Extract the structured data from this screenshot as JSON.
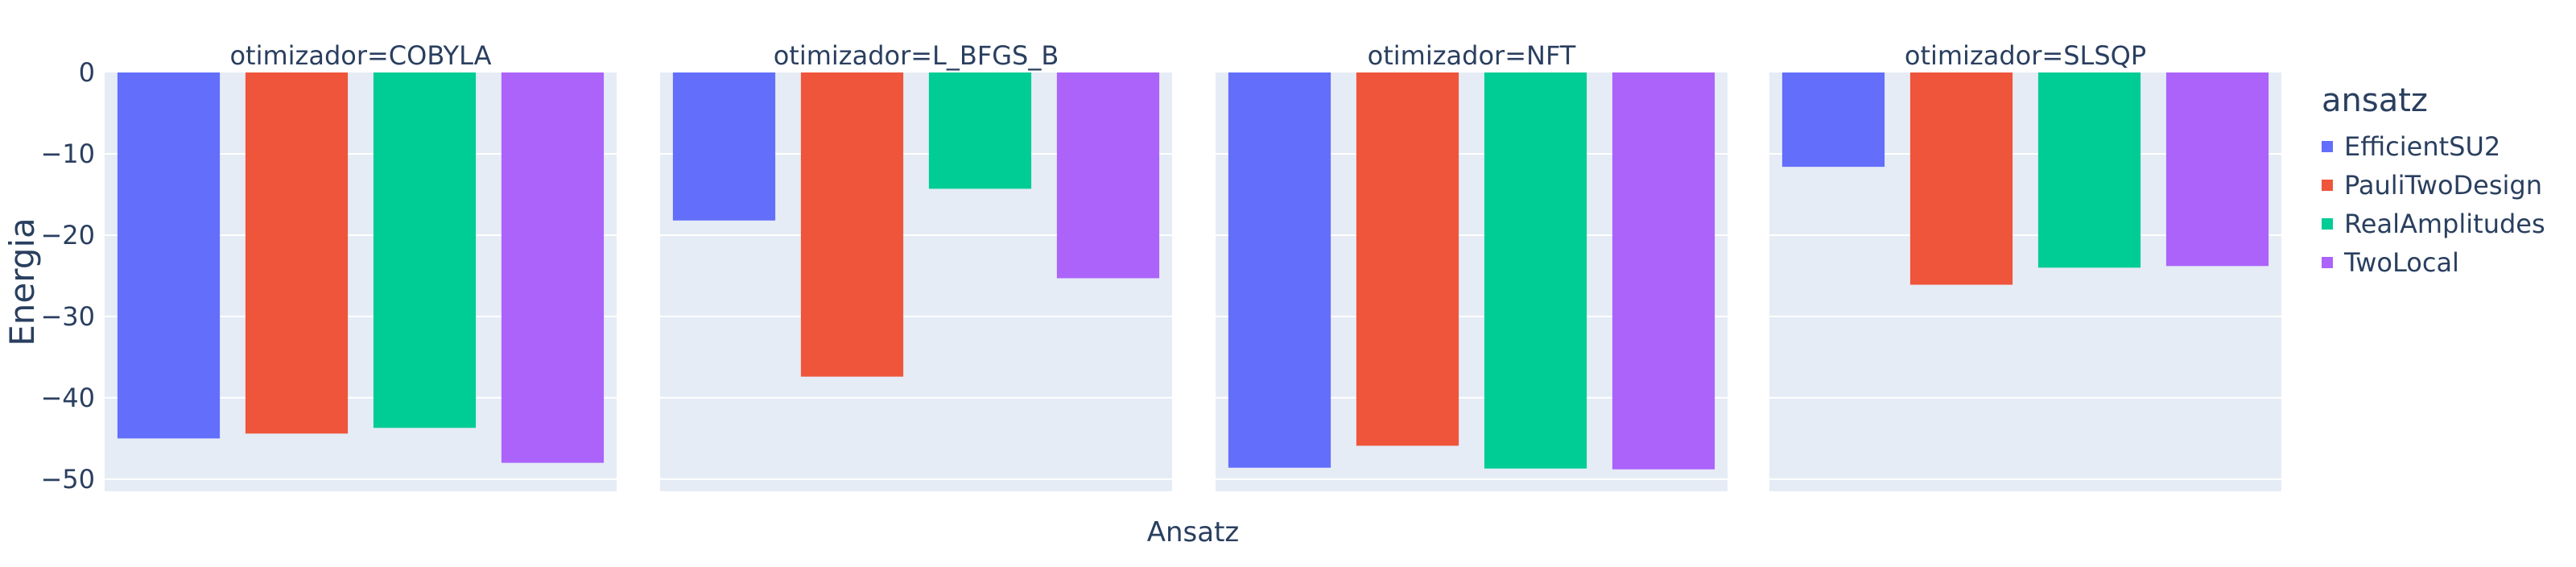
{
  "chart_data": {
    "type": "bar",
    "ylabel": "Energia",
    "xlabel": "Ansatz",
    "ylim": [
      -51.5,
      0
    ],
    "yticks": [
      0,
      -10,
      -20,
      -30,
      -40,
      -50
    ],
    "ytick_labels": [
      "0",
      "−10",
      "−20",
      "−30",
      "−40",
      "−50"
    ],
    "legend": {
      "title": "ansatz",
      "position": "right",
      "items": [
        {
          "name": "EfficientSU2",
          "color": "#636efa"
        },
        {
          "name": "PauliTwoDesign",
          "color": "#ef553b"
        },
        {
          "name": "RealAmplitudes",
          "color": "#00cc96"
        },
        {
          "name": "TwoLocal",
          "color": "#ab63fa"
        }
      ]
    },
    "categories": [
      "EfficientSU2",
      "PauliTwoDesign",
      "RealAmplitudes",
      "TwoLocal"
    ],
    "facets": [
      {
        "title": "otimizador=COBYLA",
        "values": [
          -45.0,
          -44.4,
          -43.7,
          -48.0
        ]
      },
      {
        "title": "otimizador=L_BFGS_B",
        "values": [
          -18.2,
          -37.4,
          -14.3,
          -25.3
        ]
      },
      {
        "title": "otimizador=NFT",
        "values": [
          -48.6,
          -45.9,
          -48.7,
          -48.8
        ]
      },
      {
        "title": "otimizador=SLSQP",
        "values": [
          -11.6,
          -26.1,
          -24.0,
          -23.8
        ]
      }
    ],
    "grid": true
  }
}
